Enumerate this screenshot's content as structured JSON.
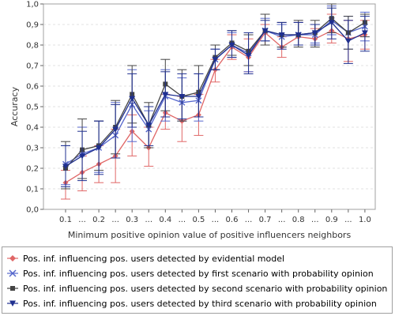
{
  "chart_data": {
    "type": "line",
    "xlabel": "Minimum positive opinion value of positive influencers neighbors",
    "ylabel": "Accuracy",
    "ylim": [
      0,
      1.0
    ],
    "y_ticks": [
      "0,0",
      "0,1",
      "0,2",
      "0,3",
      "0,4",
      "0,5",
      "0,6",
      "0,7",
      "0,8",
      "0,9",
      "1,0"
    ],
    "categories": [
      "0.1",
      "...",
      "0.2",
      "...",
      "0.3",
      "...",
      "0.4",
      "...",
      "0.5",
      "...",
      "0.6",
      "...",
      "0.7",
      "...",
      "0.8",
      "...",
      "0.9",
      "...",
      "1.0"
    ],
    "grid": true,
    "legend_position": "bottom",
    "series": [
      {
        "name": "Pos. inf. influencing pos. users detected by evidential model",
        "color": "#e06666",
        "marker": "diamond",
        "values": [
          0.13,
          0.18,
          0.22,
          0.26,
          0.38,
          0.3,
          0.47,
          0.43,
          0.46,
          0.68,
          0.79,
          0.74,
          0.86,
          0.79,
          0.84,
          0.83,
          0.87,
          0.83,
          0.85
        ],
        "err_low": [
          0.05,
          0.09,
          0.13,
          0.13,
          0.26,
          0.21,
          0.39,
          0.33,
          0.36,
          0.62,
          0.73,
          0.67,
          0.8,
          0.74,
          0.8,
          0.8,
          0.81,
          0.72,
          0.78
        ],
        "err_high": [
          0.19,
          0.26,
          0.31,
          0.39,
          0.46,
          0.4,
          0.56,
          0.55,
          0.56,
          0.73,
          0.85,
          0.83,
          0.9,
          0.84,
          0.91,
          0.88,
          0.95,
          0.92,
          0.92
        ]
      },
      {
        "name": "Pos. inf. influencing pos. users detected by first scenario with probability opinion",
        "color": "#5566cc",
        "marker": "x",
        "values": [
          0.22,
          0.27,
          0.3,
          0.36,
          0.51,
          0.39,
          0.55,
          0.52,
          0.53,
          0.73,
          0.8,
          0.76,
          0.87,
          0.84,
          0.85,
          0.85,
          0.92,
          0.86,
          0.89
        ],
        "err_low": [
          0.12,
          0.15,
          0.18,
          0.25,
          0.33,
          0.3,
          0.43,
          0.43,
          0.43,
          0.68,
          0.74,
          0.67,
          0.82,
          0.79,
          0.8,
          0.81,
          0.85,
          0.78,
          0.82
        ],
        "err_high": [
          0.31,
          0.4,
          0.43,
          0.52,
          0.68,
          0.48,
          0.68,
          0.64,
          0.66,
          0.78,
          0.86,
          0.85,
          0.93,
          0.9,
          0.91,
          0.9,
          0.99,
          0.94,
          0.96
        ]
      },
      {
        "name": "Pos. inf. influencing pos. users detected by second scenario with probability opinion",
        "color": "#444444",
        "marker": "square",
        "values": [
          0.2,
          0.29,
          0.31,
          0.4,
          0.56,
          0.41,
          0.61,
          0.55,
          0.57,
          0.74,
          0.81,
          0.77,
          0.87,
          0.85,
          0.85,
          0.86,
          0.93,
          0.86,
          0.91
        ],
        "err_low": [
          0.1,
          0.15,
          0.19,
          0.27,
          0.42,
          0.3,
          0.48,
          0.43,
          0.45,
          0.68,
          0.75,
          0.7,
          0.8,
          0.79,
          0.79,
          0.79,
          0.86,
          0.78,
          0.84
        ],
        "err_high": [
          0.33,
          0.44,
          0.43,
          0.53,
          0.7,
          0.52,
          0.73,
          0.68,
          0.7,
          0.8,
          0.87,
          0.85,
          0.95,
          0.91,
          0.92,
          0.92,
          1.0,
          0.94,
          0.95
        ]
      },
      {
        "name": "Pos. inf. influencing pos. users detected by third scenario with probability opinion",
        "color": "#1f2f8f",
        "marker": "triangle-down",
        "values": [
          0.21,
          0.26,
          0.3,
          0.39,
          0.54,
          0.41,
          0.56,
          0.55,
          0.55,
          0.73,
          0.8,
          0.75,
          0.87,
          0.85,
          0.85,
          0.86,
          0.91,
          0.82,
          0.86
        ],
        "err_low": [
          0.11,
          0.14,
          0.17,
          0.25,
          0.4,
          0.31,
          0.45,
          0.44,
          0.45,
          0.68,
          0.74,
          0.66,
          0.82,
          0.78,
          0.8,
          0.8,
          0.83,
          0.71,
          0.77
        ],
        "err_high": [
          0.31,
          0.38,
          0.43,
          0.51,
          0.66,
          0.5,
          0.67,
          0.66,
          0.66,
          0.78,
          0.87,
          0.86,
          0.92,
          0.91,
          0.91,
          0.9,
          0.98,
          0.92,
          0.94
        ]
      }
    ]
  }
}
